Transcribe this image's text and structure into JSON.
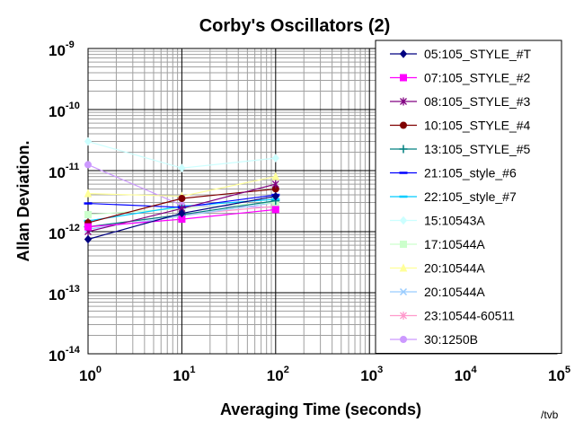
{
  "chart_data": {
    "type": "line",
    "title": "Corby's Oscillators (2)",
    "xlabel": "Averaging Time (seconds)",
    "ylabel": "Allan Deviation.",
    "x_scale": "log",
    "y_scale": "log",
    "xlim": [
      1,
      100000
    ],
    "ylim": [
      1e-14,
      1e-09
    ],
    "x_ticks": [
      {
        "base": "10",
        "exp": "0"
      },
      {
        "base": "10",
        "exp": "1"
      },
      {
        "base": "10",
        "exp": "2"
      },
      {
        "base": "10",
        "exp": "3"
      },
      {
        "base": "10",
        "exp": "4"
      },
      {
        "base": "10",
        "exp": "5"
      }
    ],
    "y_ticks": [
      {
        "base": "10",
        "exp": "-9"
      },
      {
        "base": "10",
        "exp": "-10"
      },
      {
        "base": "10",
        "exp": "-11"
      },
      {
        "base": "10",
        "exp": "-12"
      },
      {
        "base": "10",
        "exp": "-13"
      },
      {
        "base": "10",
        "exp": "-14"
      }
    ],
    "grid": true,
    "legend_position": "right",
    "x": [
      1,
      10,
      100
    ],
    "series": [
      {
        "name": "05:105_STYLE_#T",
        "color": "#000080",
        "marker": "diamond",
        "values": [
          7.5e-13,
          2e-12,
          3.8e-12
        ]
      },
      {
        "name": "07:105_STYLE_#2",
        "color": "#ff00ff",
        "marker": "square",
        "values": [
          1.2e-12,
          1.6e-12,
          2.3e-12
        ]
      },
      {
        "name": "08:105_STYLE_#3",
        "color": "#800080",
        "marker": "asterisk",
        "values": [
          1e-12,
          2.4e-12,
          6e-12
        ]
      },
      {
        "name": "10:105_STYLE_#4",
        "color": "#800000",
        "marker": "circle",
        "values": [
          1.4e-12,
          3.5e-12,
          5e-12
        ]
      },
      {
        "name": "13:105_STYLE_#5",
        "color": "#008080",
        "marker": "plus",
        "values": [
          1.2e-12,
          1.9e-12,
          3.2e-12
        ]
      },
      {
        "name": "21:105_style_#6",
        "color": "#0000ff",
        "marker": "dash",
        "values": [
          2.9e-12,
          2.5e-12,
          4e-12
        ]
      },
      {
        "name": "22:105_style_#7",
        "color": "#00ccff",
        "marker": "dash",
        "values": [
          1.5e-12,
          2.6e-12,
          3.4e-12
        ]
      },
      {
        "name": "15:10543A",
        "color": "#ccffff",
        "marker": "diamond",
        "values": [
          3e-11,
          1.1e-11,
          1.6e-11
        ]
      },
      {
        "name": "17:10544A",
        "color": "#ccffcc",
        "marker": "square",
        "values": [
          1.9e-12,
          2.4e-12,
          3e-12
        ]
      },
      {
        "name": "20:10544A",
        "color": "#ffff99",
        "marker": "triangle",
        "values": [
          4.2e-12,
          3.8e-12,
          8e-12
        ]
      },
      {
        "name": "20:10544A",
        "color": "#99ccff",
        "marker": "cross",
        "values": [
          1.1e-12,
          1.8e-12,
          3e-12
        ]
      },
      {
        "name": "23:10544-60511",
        "color": "#ff99cc",
        "marker": "asterisk",
        "values": [
          1.2e-12,
          1.9e-12,
          2.6e-12
        ]
      },
      {
        "name": "30:1250B",
        "color": "#cc99ff",
        "marker": "circle",
        "values": [
          1.25e-11,
          2.7e-12,
          2.5e-12
        ]
      }
    ],
    "credit": "/tvb"
  }
}
